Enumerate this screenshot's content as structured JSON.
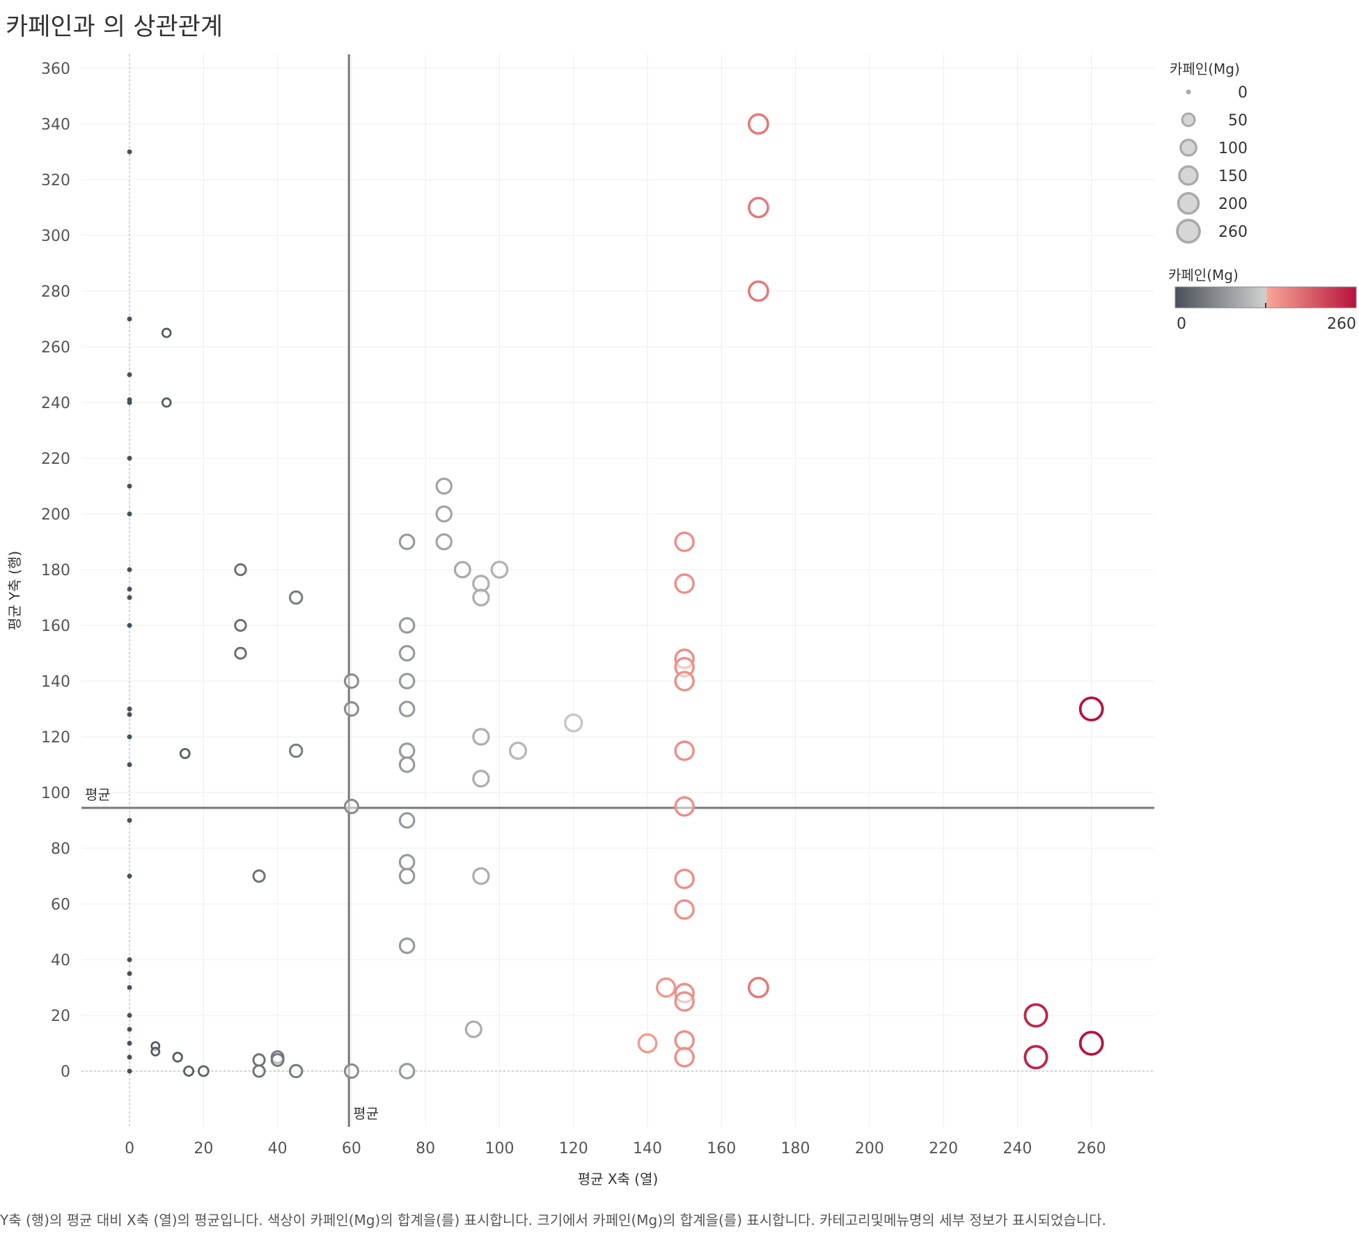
{
  "title": "카페인과 의 상관관계",
  "footnote": "Y축 (행)의 평균 대비 X축 (열)의 평균입니다. 색상이 카페인(Mg)의 합계을(를) 표시합니다. 크기에서 카페인(Mg)의 합계을(를) 표시합니다. 카테고리및메뉴명의 세부 정보가 표시되었습니다.",
  "colors": {
    "low": "#4a5058",
    "mid": "#d0d0d0",
    "high_start": "#f7a696",
    "high": "#b8123c",
    "ref_line": "#777777",
    "grid": "#eeeeee"
  },
  "chart_data": {
    "type": "scatter",
    "title": "카페인과 의 상관관계",
    "xlabel": "평균 X축 (열)",
    "ylabel": "평균 Y축 (행)",
    "xlim": [
      -13,
      277
    ],
    "ylim": [
      -20,
      365
    ],
    "x_ticks": [
      0,
      20,
      40,
      60,
      80,
      100,
      120,
      140,
      160,
      180,
      200,
      220,
      240,
      260
    ],
    "y_ticks": [
      0,
      20,
      40,
      60,
      80,
      100,
      120,
      140,
      160,
      180,
      200,
      220,
      240,
      260,
      280,
      300,
      320,
      340,
      360
    ],
    "grid": true,
    "zero_lines": true,
    "reference_lines": [
      {
        "axis": "x",
        "value": 59.3,
        "label": "평균"
      },
      {
        "axis": "y",
        "value": 94.5,
        "label": "평균"
      }
    ],
    "size_legend": {
      "title": "카페인(Mg)",
      "values": [
        0,
        50,
        100,
        150,
        200,
        260
      ]
    },
    "color_legend": {
      "title": "카페인(Mg)",
      "min": 0,
      "max": 260,
      "min_label": "0",
      "max_label": "260"
    },
    "points": [
      {
        "x": 0,
        "y": 330,
        "c": 0
      },
      {
        "x": 0,
        "y": 270,
        "c": 0
      },
      {
        "x": 0,
        "y": 250,
        "c": 0
      },
      {
        "x": 0,
        "y": 241,
        "c": 0
      },
      {
        "x": 0,
        "y": 240,
        "c": 0
      },
      {
        "x": 0,
        "y": 220,
        "c": 0
      },
      {
        "x": 0,
        "y": 210,
        "c": 0
      },
      {
        "x": 0,
        "y": 200,
        "c": 0
      },
      {
        "x": 0,
        "y": 180,
        "c": 0
      },
      {
        "x": 0,
        "y": 173,
        "c": 0
      },
      {
        "x": 0,
        "y": 170,
        "c": 0
      },
      {
        "x": 0,
        "y": 160,
        "c": 0
      },
      {
        "x": 0,
        "y": 130,
        "c": 0
      },
      {
        "x": 0,
        "y": 128,
        "c": 0
      },
      {
        "x": 0,
        "y": 120,
        "c": 0
      },
      {
        "x": 0,
        "y": 110,
        "c": 0
      },
      {
        "x": 0,
        "y": 90,
        "c": 0
      },
      {
        "x": 0,
        "y": 70,
        "c": 0
      },
      {
        "x": 0,
        "y": 40,
        "c": 0
      },
      {
        "x": 0,
        "y": 35,
        "c": 0
      },
      {
        "x": 0,
        "y": 30,
        "c": 0
      },
      {
        "x": 0,
        "y": 20,
        "c": 0
      },
      {
        "x": 0,
        "y": 15,
        "c": 0
      },
      {
        "x": 0,
        "y": 10,
        "c": 0
      },
      {
        "x": 0,
        "y": 5,
        "c": 0
      },
      {
        "x": 0,
        "y": 0,
        "c": 0
      },
      {
        "x": 10,
        "y": 265,
        "c": 10
      },
      {
        "x": 10,
        "y": 240,
        "c": 10
      },
      {
        "x": 15,
        "y": 114,
        "c": 15
      },
      {
        "x": 7,
        "y": 9,
        "c": 7
      },
      {
        "x": 7,
        "y": 7,
        "c": 7
      },
      {
        "x": 13,
        "y": 5,
        "c": 13
      },
      {
        "x": 16,
        "y": 0,
        "c": 16
      },
      {
        "x": 20,
        "y": 0,
        "c": 20
      },
      {
        "x": 30,
        "y": 180,
        "c": 30
      },
      {
        "x": 30,
        "y": 160,
        "c": 30
      },
      {
        "x": 30,
        "y": 150,
        "c": 30
      },
      {
        "x": 45,
        "y": 170,
        "c": 45
      },
      {
        "x": 45,
        "y": 115,
        "c": 45
      },
      {
        "x": 35,
        "y": 70,
        "c": 35
      },
      {
        "x": 35,
        "y": 4,
        "c": 35
      },
      {
        "x": 35,
        "y": 0,
        "c": 35
      },
      {
        "x": 40,
        "y": 5,
        "c": 40
      },
      {
        "x": 40,
        "y": 4,
        "c": 40
      },
      {
        "x": 45,
        "y": 0,
        "c": 45
      },
      {
        "x": 60,
        "y": 140,
        "c": 60
      },
      {
        "x": 60,
        "y": 130,
        "c": 60
      },
      {
        "x": 60,
        "y": 95,
        "c": 60
      },
      {
        "x": 60,
        "y": 0,
        "c": 60
      },
      {
        "x": 75,
        "y": 190,
        "c": 75
      },
      {
        "x": 75,
        "y": 160,
        "c": 75
      },
      {
        "x": 75,
        "y": 150,
        "c": 75
      },
      {
        "x": 75,
        "y": 140,
        "c": 75
      },
      {
        "x": 75,
        "y": 130,
        "c": 75
      },
      {
        "x": 75,
        "y": 115,
        "c": 75
      },
      {
        "x": 75,
        "y": 110,
        "c": 75
      },
      {
        "x": 75,
        "y": 90,
        "c": 75
      },
      {
        "x": 75,
        "y": 75,
        "c": 75
      },
      {
        "x": 75,
        "y": 70,
        "c": 75
      },
      {
        "x": 75,
        "y": 45,
        "c": 75
      },
      {
        "x": 75,
        "y": 0,
        "c": 75
      },
      {
        "x": 85,
        "y": 210,
        "c": 85
      },
      {
        "x": 85,
        "y": 200,
        "c": 85
      },
      {
        "x": 85,
        "y": 190,
        "c": 85
      },
      {
        "x": 90,
        "y": 180,
        "c": 90
      },
      {
        "x": 100,
        "y": 180,
        "c": 100
      },
      {
        "x": 95,
        "y": 175,
        "c": 95
      },
      {
        "x": 95,
        "y": 170,
        "c": 95
      },
      {
        "x": 95,
        "y": 120,
        "c": 95
      },
      {
        "x": 95,
        "y": 105,
        "c": 95
      },
      {
        "x": 95,
        "y": 70,
        "c": 95
      },
      {
        "x": 105,
        "y": 115,
        "c": 105
      },
      {
        "x": 120,
        "y": 125,
        "c": 120
      },
      {
        "x": 93,
        "y": 15,
        "c": 93
      },
      {
        "x": 150,
        "y": 190,
        "c": 150
      },
      {
        "x": 150,
        "y": 175,
        "c": 150
      },
      {
        "x": 150,
        "y": 148,
        "c": 150
      },
      {
        "x": 150,
        "y": 145,
        "c": 150
      },
      {
        "x": 150,
        "y": 140,
        "c": 150
      },
      {
        "x": 150,
        "y": 115,
        "c": 150
      },
      {
        "x": 150,
        "y": 95,
        "c": 150
      },
      {
        "x": 150,
        "y": 69,
        "c": 150
      },
      {
        "x": 150,
        "y": 58,
        "c": 150
      },
      {
        "x": 150,
        "y": 28,
        "c": 150
      },
      {
        "x": 150,
        "y": 25,
        "c": 150
      },
      {
        "x": 150,
        "y": 11,
        "c": 150
      },
      {
        "x": 150,
        "y": 5,
        "c": 150
      },
      {
        "x": 145,
        "y": 30,
        "c": 145
      },
      {
        "x": 140,
        "y": 10,
        "c": 140
      },
      {
        "x": 170,
        "y": 340,
        "c": 170
      },
      {
        "x": 170,
        "y": 310,
        "c": 170
      },
      {
        "x": 170,
        "y": 280,
        "c": 170
      },
      {
        "x": 170,
        "y": 30,
        "c": 170
      },
      {
        "x": 260,
        "y": 130,
        "c": 260
      },
      {
        "x": 260,
        "y": 10,
        "c": 260
      },
      {
        "x": 245,
        "y": 20,
        "c": 245
      },
      {
        "x": 245,
        "y": 5,
        "c": 245
      }
    ]
  }
}
